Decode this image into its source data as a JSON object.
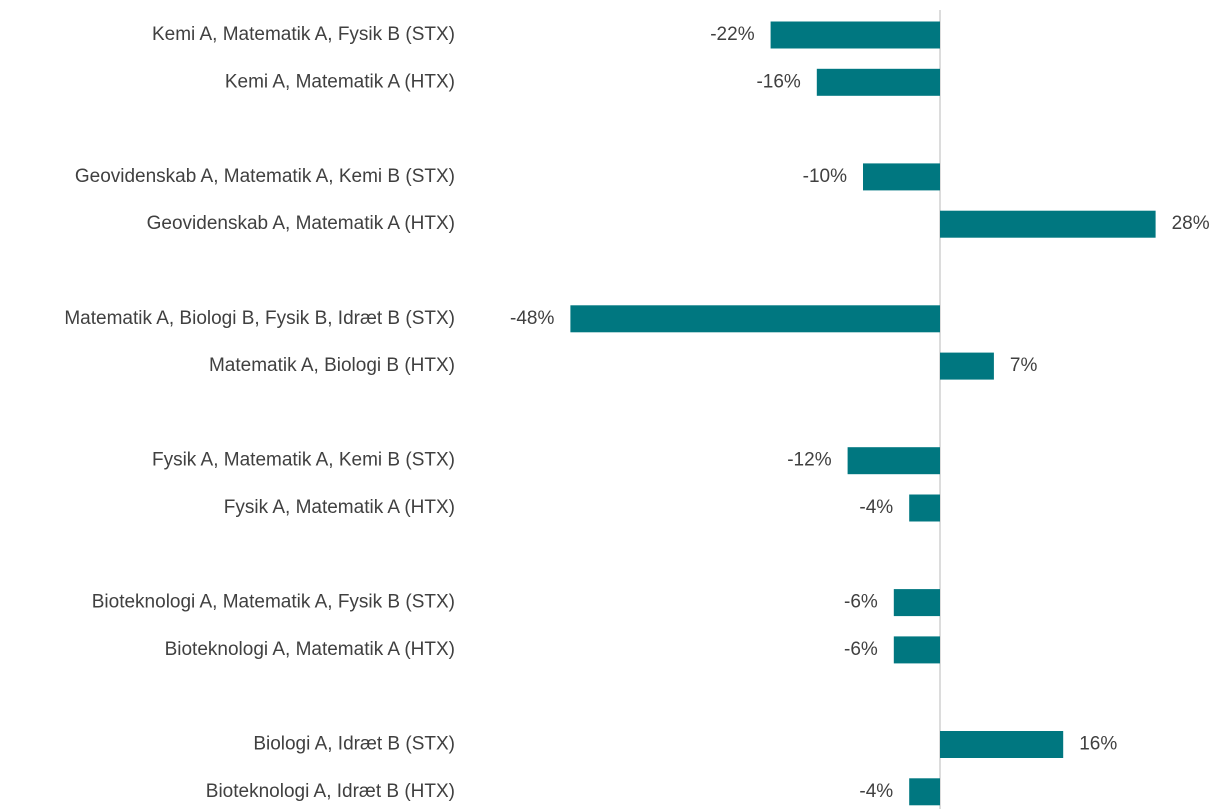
{
  "chart_data": {
    "type": "barh",
    "categories": [
      "Kemi A, Matematik A, Fysik B (STX)",
      "Kemi A, Matematik A (HTX)",
      null,
      "Geovidenskab A, Matematik A, Kemi B (STX)",
      "Geovidenskab A, Matematik A (HTX)",
      null,
      "Matematik A, Biologi B, Fysik B, Idræt B (STX)",
      "Matematik A, Biologi B (HTX)",
      null,
      "Fysik A, Matematik A, Kemi B (STX)",
      "Fysik A, Matematik A (HTX)",
      null,
      "Bioteknologi A, Matematik A, Fysik B (STX)",
      "Bioteknologi A, Matematik A (HTX)",
      null,
      "Biologi A, Idræt B (STX)",
      "Bioteknologi A, Idræt B (HTX)"
    ],
    "values": [
      -22,
      -16,
      null,
      -10,
      28,
      null,
      -48,
      7,
      null,
      -12,
      -4,
      null,
      -6,
      -6,
      null,
      16,
      -4
    ],
    "value_labels": [
      "-22%",
      "-16%",
      null,
      "-10%",
      "28%",
      null,
      "-48%",
      "7%",
      null,
      "-12%",
      "-4%",
      null,
      "-6%",
      "-6%",
      null,
      "16%",
      "-4%"
    ],
    "color": "#007780"
  }
}
